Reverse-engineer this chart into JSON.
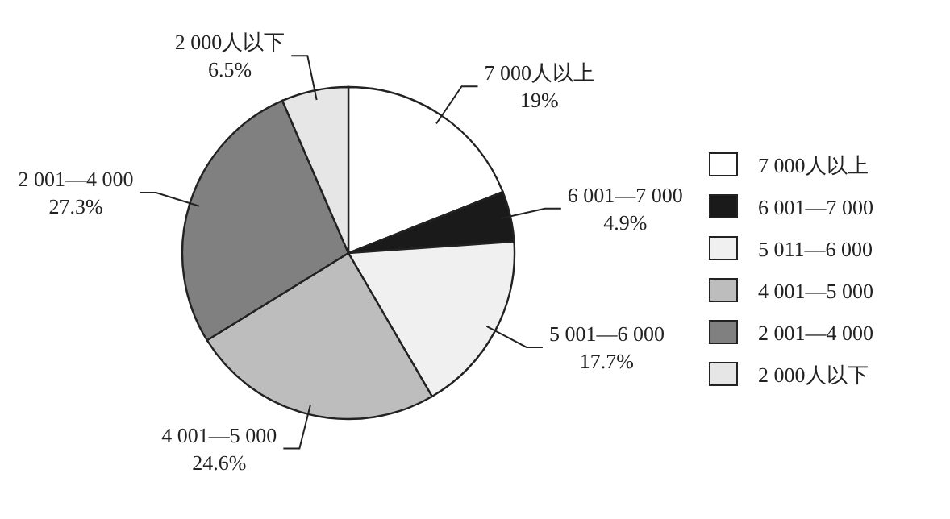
{
  "chart_data": {
    "type": "pie",
    "categories": [
      "7 000人以上",
      "6 001—7 000",
      "5 011—6 000",
      "4 001—5 000",
      "2 001—4 000",
      "2 000人以下"
    ],
    "values": [
      19,
      4.9,
      17.7,
      24.6,
      27.3,
      6.5
    ],
    "colors": [
      "#ffffff",
      "#1a1a1a",
      "#f0f0f0",
      "#bdbdbd",
      "#808080",
      "#e6e6e6"
    ],
    "value_labels": [
      "7 000人以上\n19%",
      "6 001—7 000\n4.9%",
      "5 001—6 000\n17.7%",
      "4 001—5 000\n24.6%",
      "2 001—4 000\n27.3%",
      "2 000人以下\n6.5%"
    ],
    "legend": "right"
  }
}
